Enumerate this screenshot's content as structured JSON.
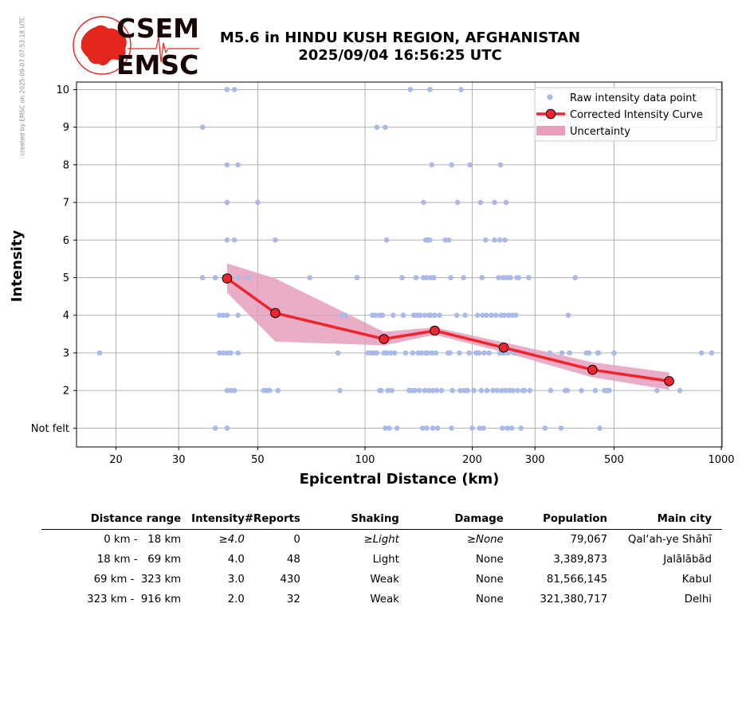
{
  "credit": "created by EMSC on 2025-09-07 07:53:18 UTC",
  "logo": {
    "line1": "CSEM",
    "line2": "EMSC",
    "colors": {
      "red": "#e3261e",
      "dark": "#1a0505"
    }
  },
  "title": {
    "line1": "M5.6 in HINDU KUSH REGION, AFGHANISTAN",
    "line2": "2025/09/04 16:56:25 UTC"
  },
  "chart_data": {
    "type": "scatter",
    "xlabel": "Epicentral Distance (km)",
    "ylabel": "Intensity",
    "xscale": "log",
    "xlim": [
      15.5,
      1005
    ],
    "ylim": [
      0.5,
      10.2
    ],
    "xticks": [
      20,
      30,
      50,
      100,
      200,
      300,
      500,
      1000
    ],
    "xtick_labels": [
      "20",
      "30",
      "50",
      "100",
      "200",
      "300",
      "500",
      "1000"
    ],
    "yticks": [
      1,
      2,
      3,
      4,
      5,
      6,
      7,
      8,
      9,
      10
    ],
    "ytick_labels": [
      "Not felt",
      "2",
      "3",
      "4",
      "5",
      "6",
      "7",
      "8",
      "9",
      "10"
    ],
    "grid": true,
    "legend_position": "top-right",
    "legend": [
      "Raw intensity data point",
      "Corrected Intensity Curve",
      "Uncertainty"
    ],
    "colors": {
      "raw": "#a9b9e8",
      "curve": "#f0242c",
      "marker_edge": "#000000",
      "uncertainty": "#e59fbd"
    },
    "raw_points": [
      [
        18,
        3
      ],
      [
        35,
        9
      ],
      [
        35,
        5
      ],
      [
        38,
        5
      ],
      [
        38,
        1
      ],
      [
        39,
        4
      ],
      [
        39,
        3
      ],
      [
        40,
        4
      ],
      [
        40,
        3
      ],
      [
        41,
        3
      ],
      [
        41,
        10
      ],
      [
        41,
        8
      ],
      [
        41,
        7
      ],
      [
        41,
        7
      ],
      [
        41,
        6
      ],
      [
        41,
        4
      ],
      [
        41,
        2
      ],
      [
        41,
        1
      ],
      [
        42,
        5
      ],
      [
        42,
        3
      ],
      [
        42,
        2
      ],
      [
        43,
        10
      ],
      [
        43,
        6
      ],
      [
        43,
        2
      ],
      [
        44,
        8
      ],
      [
        44,
        4
      ],
      [
        44,
        3
      ],
      [
        44,
        5
      ],
      [
        47,
        5
      ],
      [
        50,
        7
      ],
      [
        52,
        2
      ],
      [
        53,
        2
      ],
      [
        54,
        2
      ],
      [
        56,
        6
      ],
      [
        57,
        2
      ],
      [
        70,
        5
      ],
      [
        84,
        3
      ],
      [
        85,
        2
      ],
      [
        86,
        4
      ],
      [
        88,
        4
      ],
      [
        95,
        5
      ],
      [
        102,
        3
      ],
      [
        104,
        3
      ],
      [
        105,
        4
      ],
      [
        106,
        3
      ],
      [
        107,
        4
      ],
      [
        108,
        9
      ],
      [
        108,
        3
      ],
      [
        110,
        2
      ],
      [
        110,
        4
      ],
      [
        111,
        2
      ],
      [
        112,
        4
      ],
      [
        113,
        3
      ],
      [
        114,
        9
      ],
      [
        114,
        1
      ],
      [
        115,
        6
      ],
      [
        115,
        3
      ],
      [
        116,
        2
      ],
      [
        117,
        1
      ],
      [
        118,
        3
      ],
      [
        119,
        2
      ],
      [
        120,
        4
      ],
      [
        121,
        3
      ],
      [
        123,
        1
      ],
      [
        127,
        5
      ],
      [
        128,
        4
      ],
      [
        130,
        3
      ],
      [
        133,
        2
      ],
      [
        134,
        10
      ],
      [
        135,
        2
      ],
      [
        136,
        3
      ],
      [
        137,
        4
      ],
      [
        138,
        2
      ],
      [
        139,
        5
      ],
      [
        140,
        4
      ],
      [
        141,
        3
      ],
      [
        142,
        2
      ],
      [
        143,
        4
      ],
      [
        144,
        3
      ],
      [
        145,
        1
      ],
      [
        146,
        5
      ],
      [
        146,
        7
      ],
      [
        147,
        4
      ],
      [
        147,
        2
      ],
      [
        148,
        3
      ],
      [
        148,
        6
      ],
      [
        149,
        1
      ],
      [
        149,
        5
      ],
      [
        150,
        6
      ],
      [
        150,
        3
      ],
      [
        151,
        4
      ],
      [
        151,
        2
      ],
      [
        152,
        6
      ],
      [
        152,
        10
      ],
      [
        153,
        5
      ],
      [
        153,
        4
      ],
      [
        154,
        8
      ],
      [
        154,
        3
      ],
      [
        155,
        2
      ],
      [
        155,
        1
      ],
      [
        156,
        5
      ],
      [
        157,
        4
      ],
      [
        158,
        3
      ],
      [
        159,
        2
      ],
      [
        160,
        1
      ],
      [
        162,
        4
      ],
      [
        164,
        2
      ],
      [
        168,
        6
      ],
      [
        171,
        3
      ],
      [
        172,
        6
      ],
      [
        173,
        3
      ],
      [
        174,
        5
      ],
      [
        175,
        1
      ],
      [
        175,
        8
      ],
      [
        176,
        2
      ],
      [
        181,
        4
      ],
      [
        182,
        7
      ],
      [
        184,
        3
      ],
      [
        185,
        2
      ],
      [
        186,
        10
      ],
      [
        189,
        5
      ],
      [
        190,
        2
      ],
      [
        191,
        4
      ],
      [
        194,
        2
      ],
      [
        196,
        3
      ],
      [
        197,
        8
      ],
      [
        200,
        1
      ],
      [
        202,
        2
      ],
      [
        205,
        3
      ],
      [
        207,
        4
      ],
      [
        209,
        3
      ],
      [
        210,
        1
      ],
      [
        211,
        7
      ],
      [
        212,
        2
      ],
      [
        213,
        5
      ],
      [
        214,
        4
      ],
      [
        215,
        1
      ],
      [
        216,
        3
      ],
      [
        218,
        6
      ],
      [
        219,
        4
      ],
      [
        220,
        2
      ],
      [
        223,
        3
      ],
      [
        226,
        4
      ],
      [
        229,
        2
      ],
      [
        231,
        6
      ],
      [
        231,
        7
      ],
      [
        233,
        4
      ],
      [
        235,
        2
      ],
      [
        237,
        5
      ],
      [
        239,
        6
      ],
      [
        239,
        3
      ],
      [
        240,
        8
      ],
      [
        241,
        4
      ],
      [
        242,
        2
      ],
      [
        243,
        1
      ],
      [
        244,
        5
      ],
      [
        245,
        3
      ],
      [
        246,
        4
      ],
      [
        247,
        6
      ],
      [
        248,
        2
      ],
      [
        249,
        7
      ],
      [
        250,
        5
      ],
      [
        251,
        1
      ],
      [
        252,
        3
      ],
      [
        253,
        4
      ],
      [
        255,
        2
      ],
      [
        256,
        5
      ],
      [
        258,
        1
      ],
      [
        259,
        4
      ],
      [
        260,
        2
      ],
      [
        262,
        3
      ],
      [
        265,
        4
      ],
      [
        267,
        5
      ],
      [
        268,
        2
      ],
      [
        270,
        5
      ],
      [
        274,
        1
      ],
      [
        277,
        2
      ],
      [
        280,
        2
      ],
      [
        288,
        5
      ],
      [
        290,
        2
      ],
      [
        320,
        1
      ],
      [
        330,
        3
      ],
      [
        332,
        2
      ],
      [
        355,
        1
      ],
      [
        357,
        3
      ],
      [
        365,
        2
      ],
      [
        370,
        2
      ],
      [
        372,
        4
      ],
      [
        375,
        3
      ],
      [
        389,
        5
      ],
      [
        405,
        2
      ],
      [
        418,
        3
      ],
      [
        425,
        3
      ],
      [
        443,
        2
      ],
      [
        450,
        3
      ],
      [
        452,
        3
      ],
      [
        456,
        1
      ],
      [
        470,
        2
      ],
      [
        478,
        2
      ],
      [
        485,
        2
      ],
      [
        500,
        3
      ],
      [
        660,
        2
      ],
      [
        765,
        2
      ],
      [
        880,
        3
      ],
      [
        940,
        3
      ]
    ],
    "curve": {
      "x": [
        41,
        56,
        113,
        157,
        245,
        435,
        714
      ],
      "y": [
        4.98,
        4.06,
        3.37,
        3.59,
        3.14,
        2.55,
        2.25
      ]
    },
    "uncertainty": {
      "x": [
        41,
        56,
        113,
        157,
        245,
        435,
        714
      ],
      "upper": [
        5.38,
        4.98,
        3.56,
        3.68,
        3.28,
        2.75,
        2.48
      ],
      "lower": [
        4.6,
        3.3,
        3.2,
        3.48,
        3.02,
        2.35,
        2.02
      ]
    }
  },
  "table": {
    "headers": [
      "Distance range",
      "Intensity",
      "#Reports",
      "Shaking",
      "Damage",
      "Population",
      "Main city"
    ],
    "rows": [
      [
        "0 km -   18 km",
        "≥4.0",
        "0",
        "≥Light",
        "≥None",
        "79,067",
        "Qal‘ah-ye Shāhī"
      ],
      [
        "18 km -   69 km",
        "4.0",
        "48",
        "Light",
        "None",
        "3,389,873",
        "Jalālābād"
      ],
      [
        "69 km -  323 km",
        "3.0",
        "430",
        "Weak",
        "None",
        "81,566,145",
        "Kabul"
      ],
      [
        "323 km -  916 km",
        "2.0",
        "32",
        "Weak",
        "None",
        "321,380,717",
        "Delhi"
      ]
    ]
  }
}
